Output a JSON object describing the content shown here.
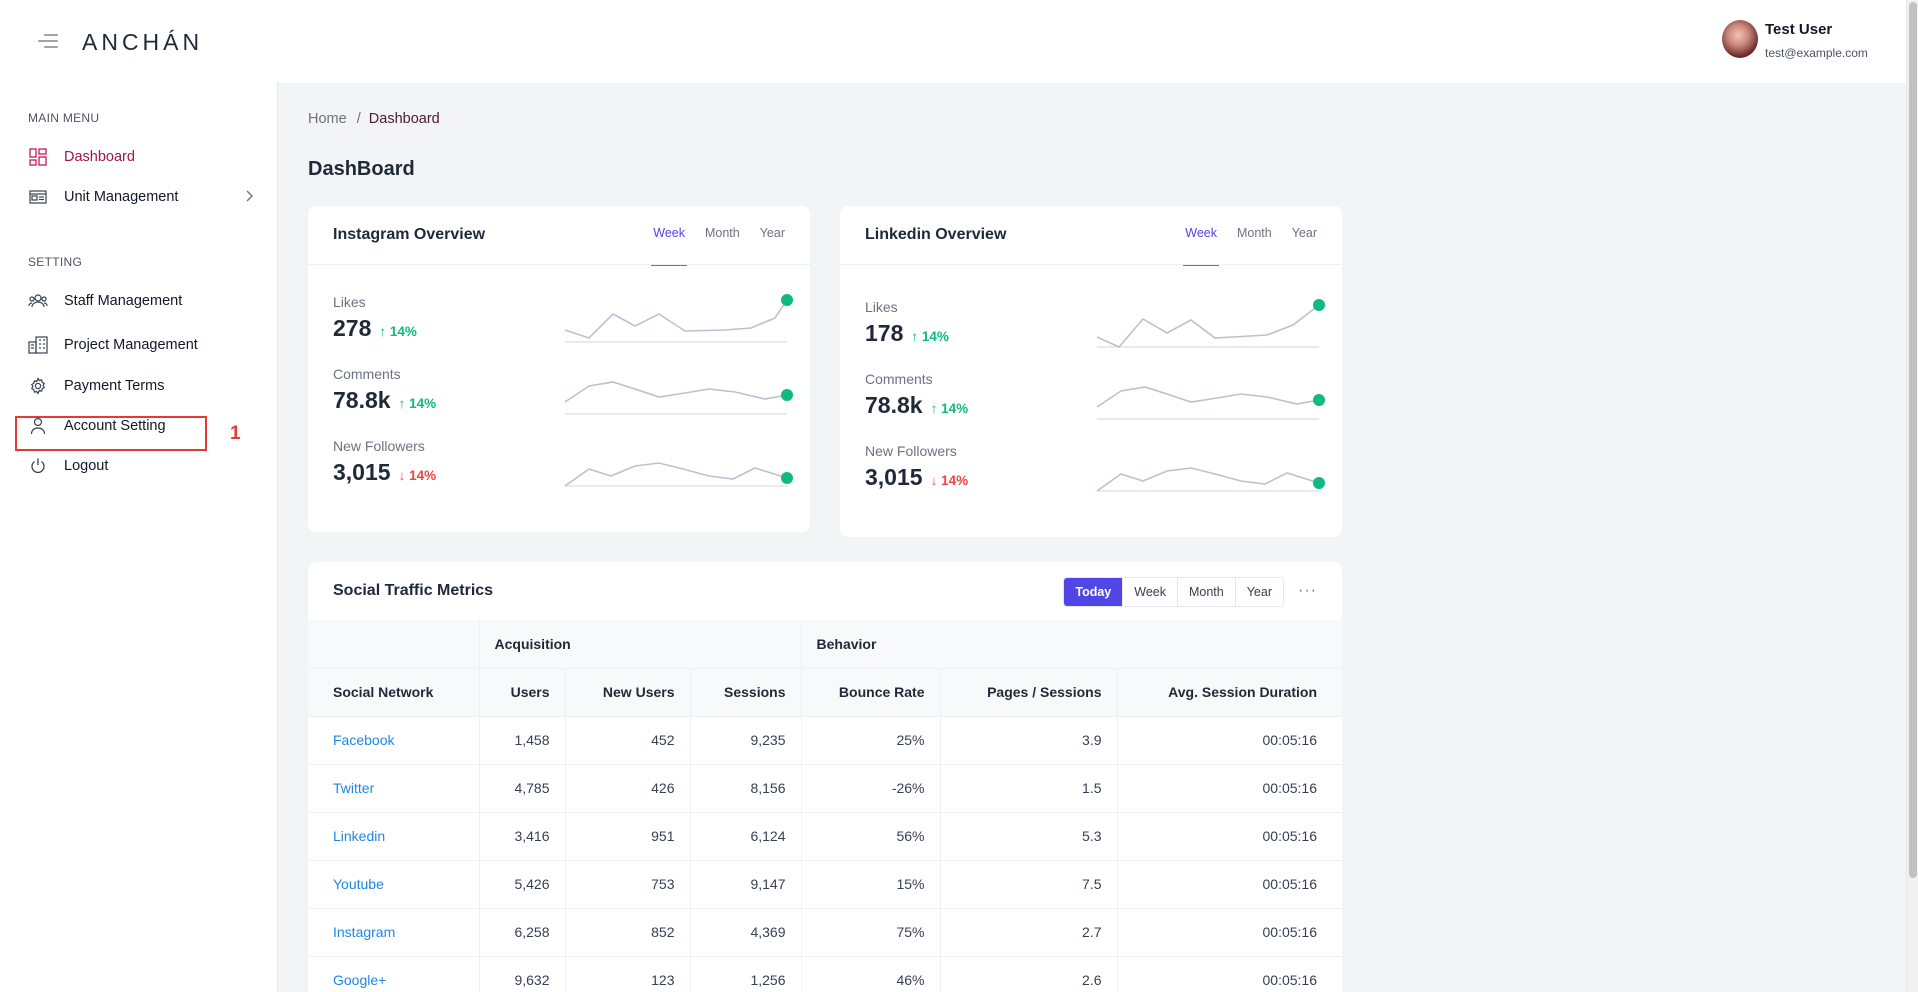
{
  "header": {
    "logo": "ANCHÁN",
    "user": {
      "name": "Test User",
      "email": "test@example.com"
    }
  },
  "sidebar": {
    "main_menu_title": "MAIN MENU",
    "main_items": [
      {
        "label": "Dashboard",
        "icon": "dashboard-grid-icon"
      },
      {
        "label": "Unit Management",
        "icon": "unit-card-icon"
      }
    ],
    "setting_title": "SETTING",
    "setting_items": [
      {
        "label": "Staff Management",
        "icon": "users-icon"
      },
      {
        "label": "Project Management",
        "icon": "building-icon"
      },
      {
        "label": "Payment Terms",
        "icon": "gear-icon"
      },
      {
        "label": "Account Setting",
        "icon": "user-icon"
      },
      {
        "label": "Logout",
        "icon": "power-icon"
      }
    ],
    "annotation_number": "1"
  },
  "breadcrumb": {
    "home": "Home",
    "separator": "/",
    "current": "Dashboard"
  },
  "page_title": "DashBoard",
  "instagram": {
    "title": "Instagram Overview",
    "tabs": [
      "Week",
      "Month",
      "Year"
    ],
    "metrics": [
      {
        "label": "Likes",
        "value": "278",
        "arrow": "↑",
        "change": "14%",
        "trend": "up"
      },
      {
        "label": "Comments",
        "value": "78.8k",
        "arrow": "↑",
        "change": "14%",
        "trend": "up"
      },
      {
        "label": "New Followers",
        "value": "3,015",
        "arrow": "↓",
        "change": "14%",
        "trend": "down"
      }
    ]
  },
  "linkedin": {
    "title": "Linkedin Overview",
    "tabs": [
      "Week",
      "Month",
      "Year"
    ],
    "metrics": [
      {
        "label": "Likes",
        "value": "178",
        "arrow": "↑",
        "change": "14%",
        "trend": "up"
      },
      {
        "label": "Comments",
        "value": "78.8k",
        "arrow": "↑",
        "change": "14%",
        "trend": "up"
      },
      {
        "label": "New Followers",
        "value": "3,015",
        "arrow": "↓",
        "change": "14%",
        "trend": "down"
      }
    ]
  },
  "traffic": {
    "title": "Social Traffic Metrics",
    "ranges": [
      "Today",
      "Week",
      "Month",
      "Year"
    ],
    "more": "···",
    "groups": {
      "acquisition": "Acquisition",
      "behavior": "Behavior"
    },
    "columns": [
      "Social Network",
      "Users",
      "New Users",
      "Sessions",
      "Bounce Rate",
      "Pages / Sessions",
      "Avg. Session Duration"
    ],
    "rows": [
      [
        "Facebook",
        "1,458",
        "452",
        "9,235",
        "25%",
        "3.9",
        "00:05:16"
      ],
      [
        "Twitter",
        "4,785",
        "426",
        "8,156",
        "-26%",
        "1.5",
        "00:05:16"
      ],
      [
        "Linkedin",
        "3,416",
        "951",
        "6,124",
        "56%",
        "5.3",
        "00:05:16"
      ],
      [
        "Youtube",
        "5,426",
        "753",
        "9,147",
        "15%",
        "7.5",
        "00:05:16"
      ],
      [
        "Instagram",
        "6,258",
        "852",
        "4,369",
        "75%",
        "2.7",
        "00:05:16"
      ],
      [
        "Google+",
        "9,632",
        "123",
        "1,256",
        "46%",
        "2.6",
        "00:05:16"
      ]
    ]
  },
  "colors": {
    "accent": "#4f46e5",
    "positive": "#10b981",
    "negative": "#ef4444",
    "link": "#1e88e5",
    "active_nav": "#9d174d"
  }
}
